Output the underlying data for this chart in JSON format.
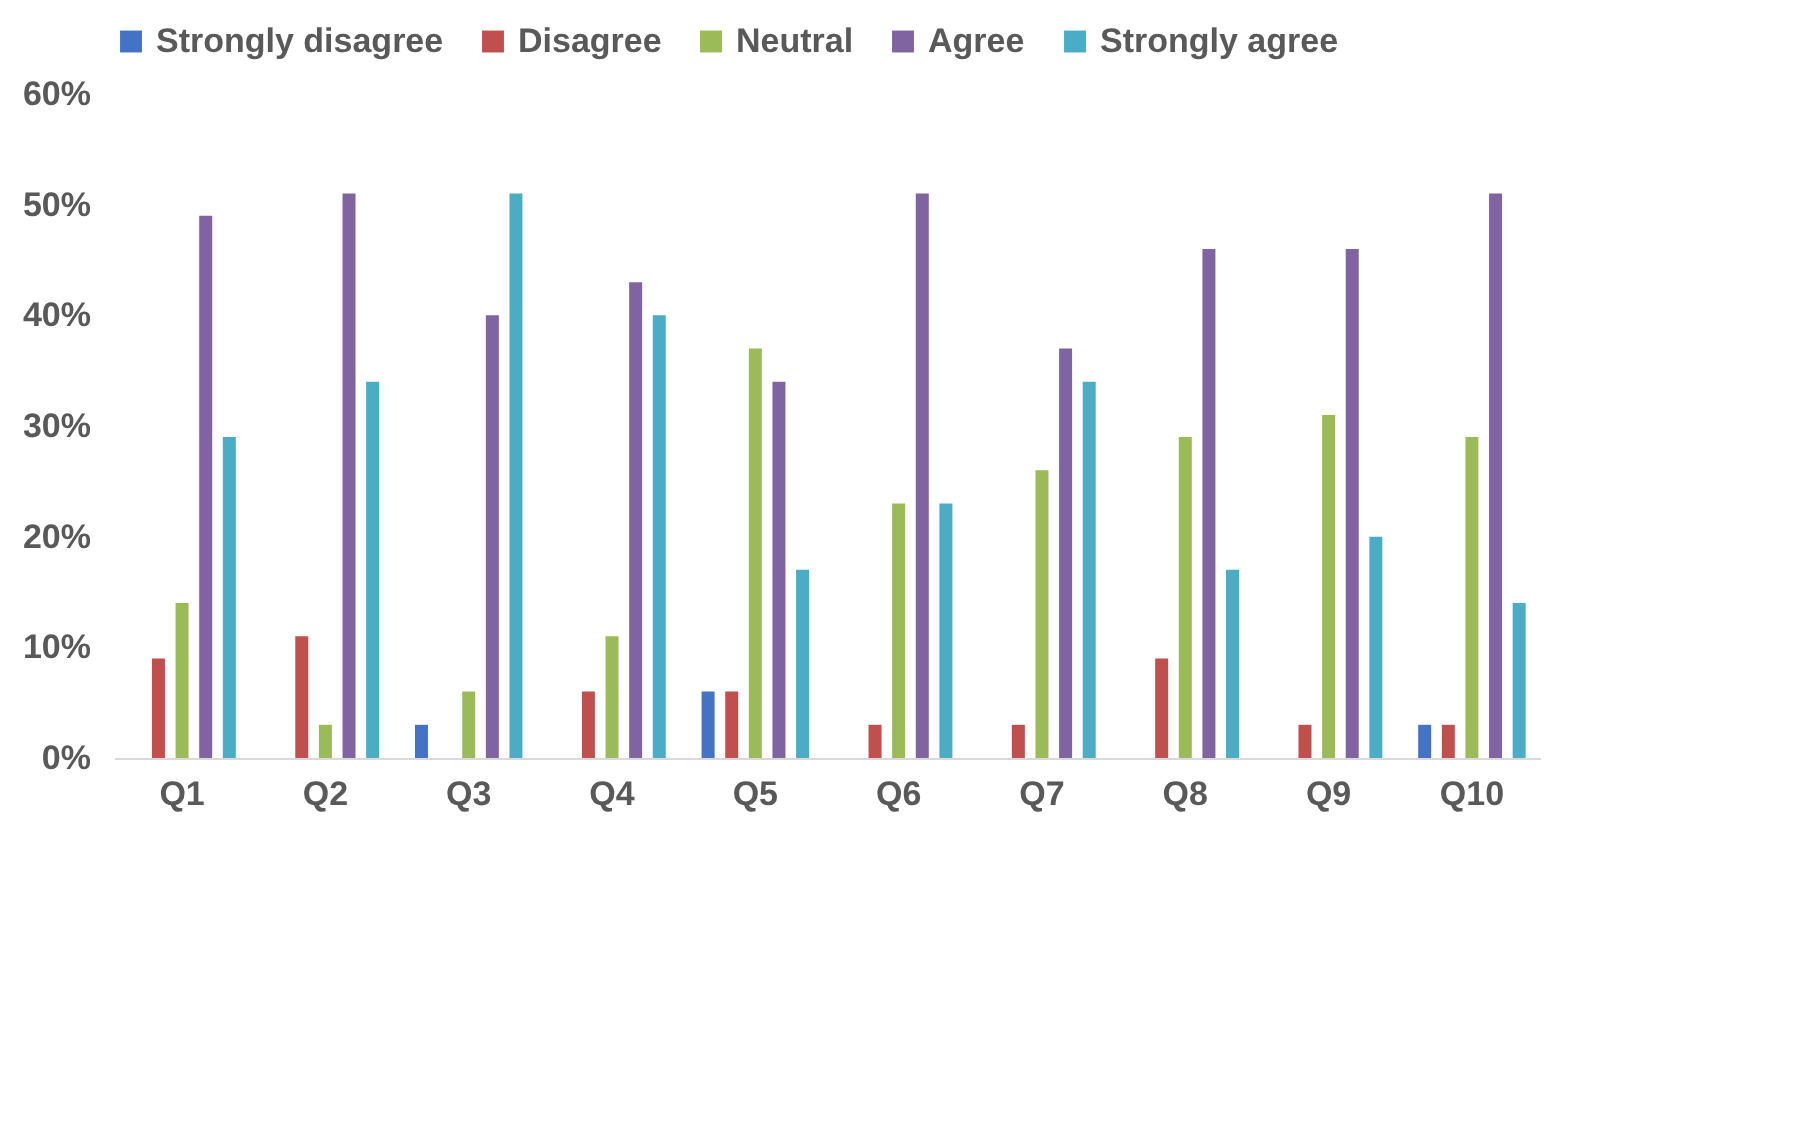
{
  "chart_data": {
    "type": "bar",
    "categories": [
      "Q1",
      "Q2",
      "Q3",
      "Q4",
      "Q5",
      "Q6",
      "Q7",
      "Q8",
      "Q9",
      "Q10"
    ],
    "series": [
      {
        "name": "Strongly disagree",
        "color": "#4472c4",
        "values": [
          0,
          0,
          3,
          0,
          6,
          0,
          0,
          0,
          0,
          3
        ]
      },
      {
        "name": "Disagree",
        "color": "#c0504d",
        "values": [
          9,
          11,
          0,
          6,
          6,
          3,
          3,
          9,
          3,
          3
        ]
      },
      {
        "name": "Neutral",
        "color": "#9bbb59",
        "values": [
          14,
          3,
          6,
          11,
          37,
          23,
          26,
          29,
          31,
          29
        ]
      },
      {
        "name": "Agree",
        "color": "#8064a2",
        "values": [
          49,
          51,
          40,
          43,
          34,
          51,
          37,
          46,
          46,
          51
        ]
      },
      {
        "name": "Strongly agree",
        "color": "#4bacc6",
        "values": [
          29,
          34,
          51,
          40,
          17,
          23,
          34,
          17,
          20,
          14
        ]
      }
    ],
    "ylim": [
      0,
      60
    ],
    "yticks": [
      {
        "value": 0,
        "label": "0%"
      },
      {
        "value": 10,
        "label": "10%"
      },
      {
        "value": 20,
        "label": "20%"
      },
      {
        "value": 30,
        "label": "30%"
      },
      {
        "value": 40,
        "label": "40%"
      },
      {
        "value": 50,
        "label": "50%"
      },
      {
        "value": 60,
        "label": "60%"
      }
    ],
    "grid": false,
    "legend": "top"
  }
}
